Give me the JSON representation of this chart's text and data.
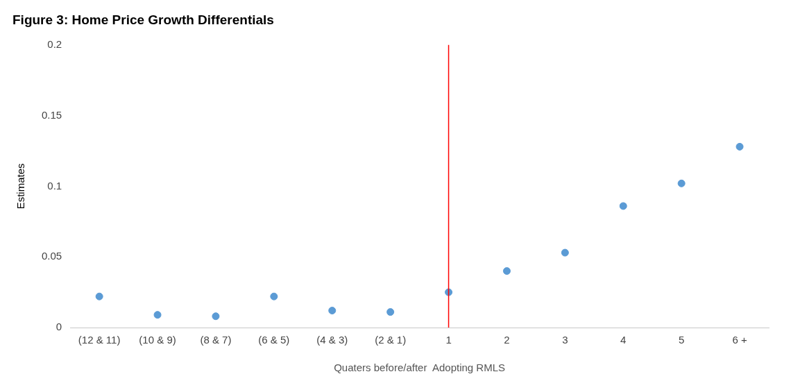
{
  "chart_data": {
    "type": "scatter",
    "title": "Figure 3: Home Price Growth Differentials",
    "xlabel": "Quaters before/after  Adopting RMLS",
    "ylabel": "Estimates",
    "categories": [
      "(12 & 11)",
      "(10 & 9)",
      "(8 & 7)",
      "(6 & 5)",
      "(4 & 3)",
      "(2 & 1)",
      "1",
      "2",
      "3",
      "4",
      "5",
      "6 +"
    ],
    "series": [
      {
        "color": "#5b9bd5",
        "values": [
          0.022,
          0.009,
          0.008,
          0.022,
          0.012,
          0.011,
          0.025,
          0.04,
          0.053,
          0.086,
          0.102,
          0.128
        ]
      }
    ],
    "ylim": [
      0,
      0.2
    ],
    "yticks": [
      0,
      0.05,
      0.1,
      0.15,
      0.2
    ],
    "grid": false,
    "legend": false,
    "marker": "circle",
    "ref_lines": [
      {
        "axis": "x",
        "value": "1",
        "color": "#ff0000"
      }
    ]
  }
}
